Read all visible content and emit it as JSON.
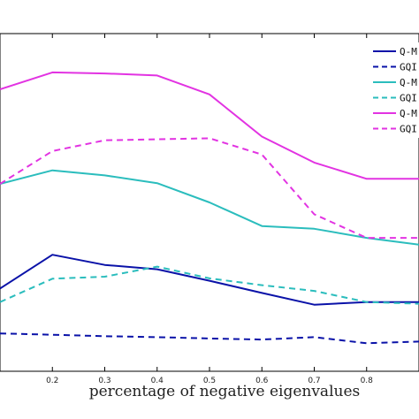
{
  "chart_data": {
    "type": "line",
    "xlabel": "percentage of negative eigenvalues",
    "ylabel": "",
    "x": [
      0.1,
      0.2,
      0.3,
      0.4,
      0.5,
      0.6,
      0.7,
      0.8,
      0.9
    ],
    "xticks": [
      0.2,
      0.3,
      0.4,
      0.5,
      0.6,
      0.7,
      0.8
    ],
    "xlim": [
      0.1,
      0.9
    ],
    "ylim": [
      0,
      1
    ],
    "grid": false,
    "legend_position": "top-right",
    "series": [
      {
        "name": "Q-M",
        "color": "#0a12a8",
        "dash": "solid",
        "values": [
          0.245,
          0.345,
          0.315,
          0.302,
          0.268,
          0.232,
          0.197,
          0.205,
          0.205
        ]
      },
      {
        "name": "GQI",
        "color": "#0a12a8",
        "dash": "dashed",
        "values": [
          0.112,
          0.108,
          0.104,
          0.101,
          0.097,
          0.094,
          0.101,
          0.083,
          0.088
        ]
      },
      {
        "name": "Q-M",
        "color": "#2bbdbd",
        "dash": "solid",
        "values": [
          0.555,
          0.595,
          0.58,
          0.557,
          0.5,
          0.43,
          0.422,
          0.395,
          0.375
        ]
      },
      {
        "name": "GQI",
        "color": "#2bbdbd",
        "dash": "dashed",
        "values": [
          0.205,
          0.274,
          0.28,
          0.31,
          0.275,
          0.255,
          0.238,
          0.205,
          0.2
        ]
      },
      {
        "name": "Q-M",
        "color": "#e233e2",
        "dash": "solid",
        "values": [
          0.835,
          0.885,
          0.882,
          0.876,
          0.82,
          0.695,
          0.618,
          0.57,
          0.57
        ]
      },
      {
        "name": "GQI",
        "color": "#e233e2",
        "dash": "dashed",
        "values": [
          0.555,
          0.652,
          0.684,
          0.687,
          0.69,
          0.642,
          0.465,
          0.395,
          0.395
        ]
      }
    ]
  }
}
